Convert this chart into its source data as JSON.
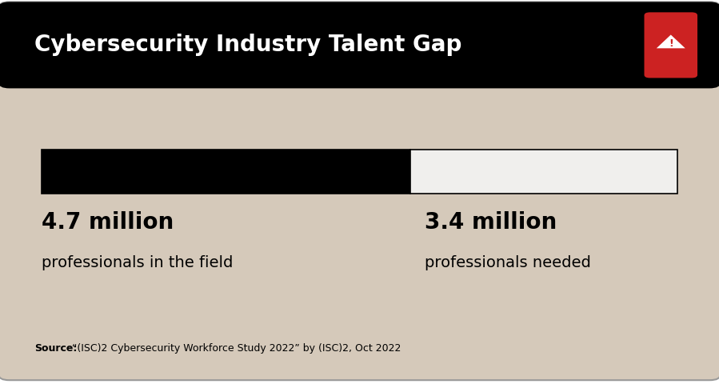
{
  "title": "Cybersecurity Industry Talent Gap",
  "background_color": "#d5c9ba",
  "header_color": "#000000",
  "title_color": "#ffffff",
  "title_fontsize": 20,
  "bar_value1": 4.7,
  "bar_value2": 3.4,
  "bar_color1": "#000000",
  "bar_color2": "#f0efed",
  "bar_edgecolor": "#000000",
  "label1_bold": "4.7 million",
  "label1_sub": "professionals in the field",
  "label2_bold": "3.4 million",
  "label2_sub": "professionals needed",
  "source_bold": "Source:",
  "source_text": "“(ISC)2 Cybersecurity Workforce Study 2022” by (ISC)2, Oct 2022",
  "source_fontsize": 9,
  "label_fontsize_bold": 20,
  "label_fontsize_sub": 14,
  "warning_icon_color": "#cc2222",
  "outer_bg": "#ffffff",
  "card_border_color": "#999999"
}
